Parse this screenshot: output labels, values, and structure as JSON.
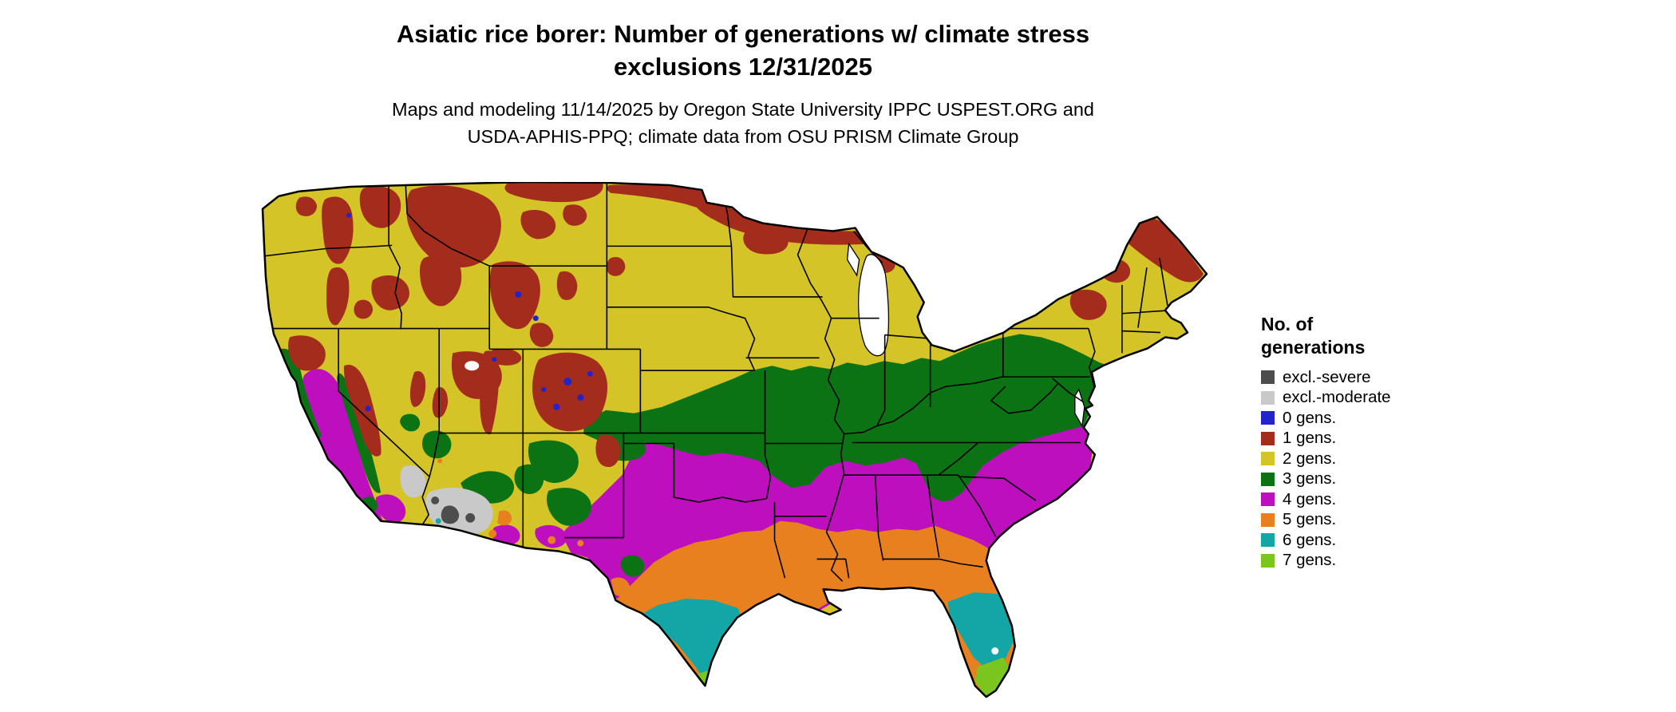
{
  "header": {
    "title_line1": "Asiatic rice borer: Number of generations w/ climate stress",
    "title_line2": "exclusions 12/31/2025",
    "subtitle_line1": "Maps and modeling 11/14/2025 by Oregon State University IPPC USPEST.ORG and",
    "subtitle_line2": "USDA-APHIS-PPQ; climate data from OSU PRISM Climate Group"
  },
  "legend": {
    "title_line1": "No. of",
    "title_line2": "generations",
    "items": [
      {
        "key": "excl_severe",
        "label": "excl.-severe",
        "color": "#4d4d4d"
      },
      {
        "key": "excl_moderate",
        "label": "excl.-moderate",
        "color": "#c9c9c9"
      },
      {
        "key": "gens0",
        "label": "0 gens.",
        "color": "#2323cc"
      },
      {
        "key": "gens1",
        "label": "1 gens.",
        "color": "#a32c1c"
      },
      {
        "key": "gens2",
        "label": "2 gens.",
        "color": "#d4c427"
      },
      {
        "key": "gens3",
        "label": "3 gens.",
        "color": "#0b7313"
      },
      {
        "key": "gens4",
        "label": "4 gens.",
        "color": "#bd0fbd"
      },
      {
        "key": "gens5",
        "label": "5 gens.",
        "color": "#e8801f"
      },
      {
        "key": "gens6",
        "label": "6 gens.",
        "color": "#14a6a6"
      },
      {
        "key": "gens7",
        "label": "7 gens.",
        "color": "#7ac61e"
      }
    ]
  },
  "map": {
    "name": "Continental United States generations map",
    "water_color": "#ffffff",
    "border_color": "#000000"
  }
}
